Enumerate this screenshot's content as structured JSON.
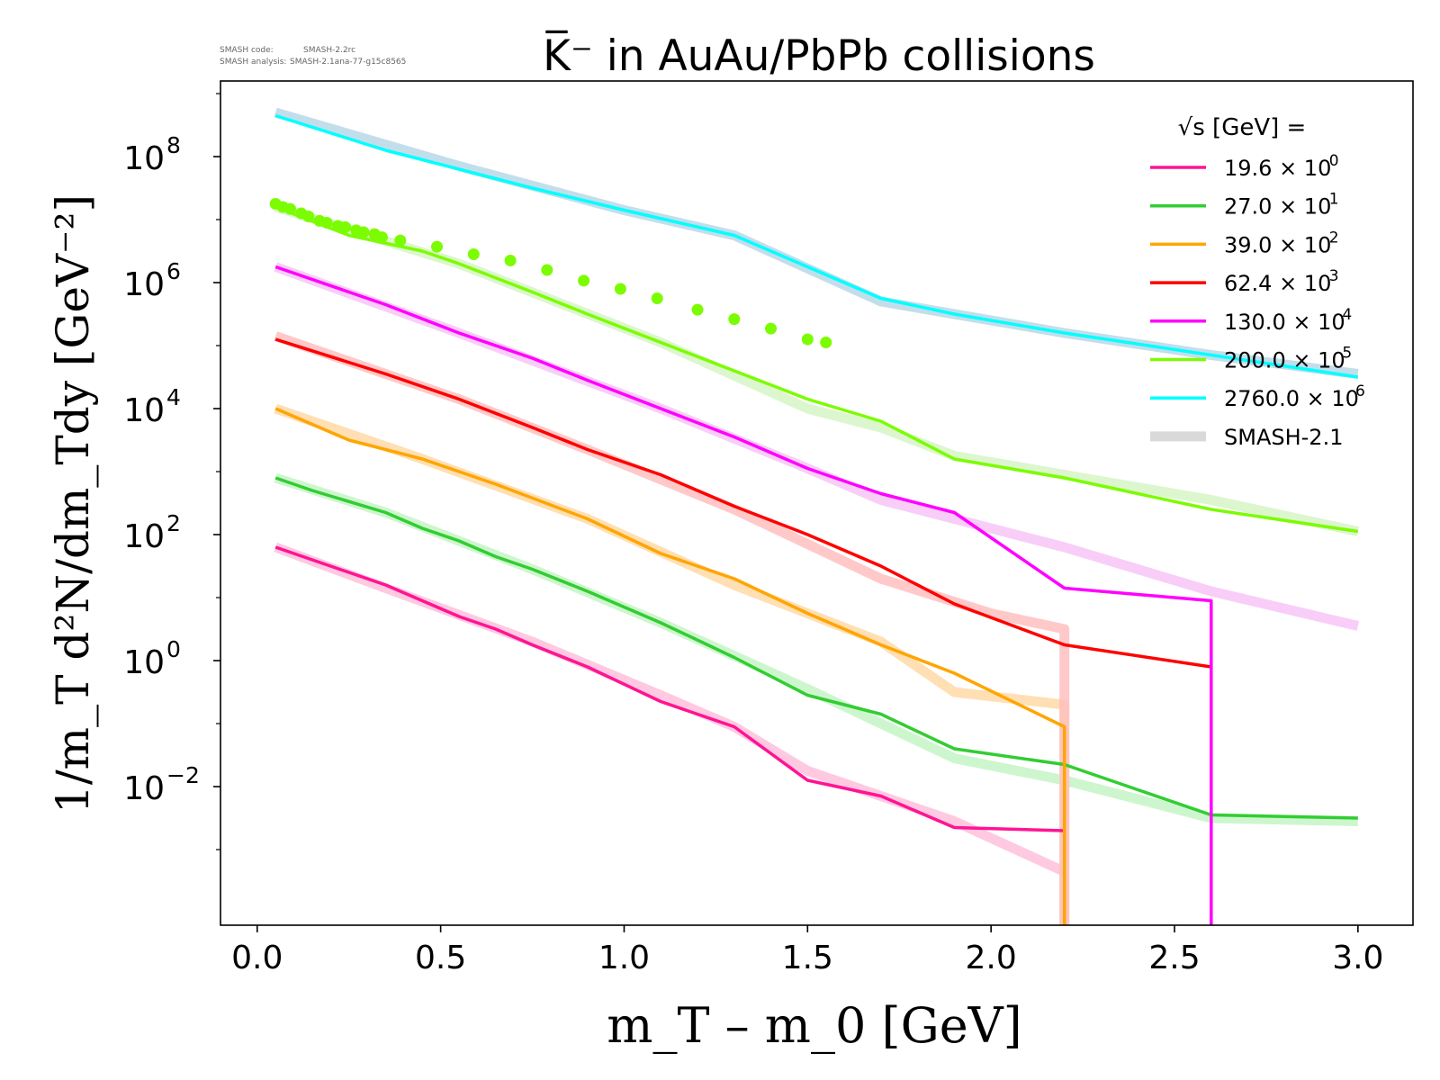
{
  "meta": {
    "code_label": "SMASH code:",
    "code_value": "SMASH-2.2rc",
    "analysis_label": "SMASH analysis:",
    "analysis_value": "SMASH-2.1ana-77-g15c8565"
  },
  "chart_data": {
    "type": "line",
    "title": "K̅⁻ in AuAu/PbPb collisions",
    "xlabel": "m_T – m_0 [GeV]",
    "ylabel": "1/m_T d²N/dm_Tdy [GeV⁻²]",
    "yscale": "log",
    "xlim": [
      -0.1,
      3.15
    ],
    "ylim_exp": [
      -4.2,
      9.2
    ],
    "x_ticks": [
      "0.0",
      "0.5",
      "1.0",
      "1.5",
      "2.0",
      "2.5",
      "3.0"
    ],
    "y_ticks": [
      {
        "base": "10",
        "exp": "8",
        "value": 8
      },
      {
        "base": "10",
        "exp": "6",
        "value": 6
      },
      {
        "base": "10",
        "exp": "4",
        "value": 4
      },
      {
        "base": "10",
        "exp": "2",
        "value": 2
      },
      {
        "base": "10",
        "exp": "0",
        "value": 0
      },
      {
        "base": "10",
        "exp": "−2",
        "value": -2
      }
    ],
    "legend": {
      "title": "√s  [GeV] =",
      "position": "top-right",
      "entries": [
        {
          "value": "19.6",
          "mult": "10",
          "exp": "0",
          "color": "#ff1493"
        },
        {
          "value": "27.0",
          "mult": "10",
          "exp": "1",
          "color": "#32cd32"
        },
        {
          "value": "39.0",
          "mult": "10",
          "exp": "2",
          "color": "#ffa500"
        },
        {
          "value": "62.4",
          "mult": "10",
          "exp": "3",
          "color": "#ff0000"
        },
        {
          "value": "130.0",
          "mult": "10",
          "exp": "4",
          "color": "#ff00ff"
        },
        {
          "value": "200.0",
          "mult": "10",
          "exp": "5",
          "color": "#7cfc00"
        },
        {
          "value": "2760.0",
          "mult": "10",
          "exp": "6",
          "color": "#00ffff"
        }
      ],
      "band_label": "SMASH-2.1",
      "band_color": "#d9d9d9"
    },
    "series": [
      {
        "name": "19.6",
        "color": "#ff1493",
        "x": [
          0.05,
          0.15,
          0.35,
          0.55,
          0.65,
          0.75,
          0.9,
          1.1,
          1.3,
          1.5,
          1.7,
          1.9,
          2.2
        ],
        "y_log10": [
          1.8,
          1.6,
          1.2,
          0.7,
          0.5,
          0.25,
          -0.1,
          -0.65,
          -1.05,
          -1.9,
          -2.15,
          -2.65,
          -2.7
        ]
      },
      {
        "name": "27.0",
        "color": "#32cd32",
        "x": [
          0.05,
          0.15,
          0.35,
          0.45,
          0.55,
          0.65,
          0.75,
          0.9,
          1.1,
          1.3,
          1.5,
          1.7,
          1.9,
          2.2,
          2.4,
          2.6,
          3.0
        ],
        "y_log10": [
          2.9,
          2.7,
          2.35,
          2.1,
          1.9,
          1.65,
          1.45,
          1.1,
          0.6,
          0.05,
          -0.55,
          -0.85,
          -1.4,
          -1.65,
          -2.05,
          -2.45,
          -2.5
        ]
      },
      {
        "name": "39.0",
        "color": "#ffa500",
        "x": [
          0.05,
          0.25,
          0.45,
          0.65,
          0.9,
          1.1,
          1.3,
          1.5,
          1.7,
          1.9,
          2.2,
          2.2
        ],
        "y_log10": [
          4.0,
          3.5,
          3.2,
          2.8,
          2.25,
          1.7,
          1.3,
          0.75,
          0.25,
          -0.2,
          -1.05,
          -4.2
        ]
      },
      {
        "name": "62.4",
        "color": "#ff0000",
        "x": [
          0.05,
          0.35,
          0.55,
          0.75,
          0.9,
          1.1,
          1.3,
          1.5,
          1.7,
          1.9,
          2.2,
          2.6
        ],
        "y_log10": [
          5.1,
          4.55,
          4.15,
          3.7,
          3.35,
          2.95,
          2.45,
          2.0,
          1.5,
          0.9,
          0.25,
          -0.1
        ]
      },
      {
        "name": "130.0",
        "color": "#ff00ff",
        "x": [
          0.05,
          0.35,
          0.55,
          0.75,
          0.9,
          1.1,
          1.3,
          1.5,
          1.7,
          1.9,
          2.2,
          2.6,
          2.6
        ],
        "y_log10": [
          6.25,
          5.65,
          5.2,
          4.8,
          4.45,
          4.0,
          3.55,
          3.05,
          2.65,
          2.35,
          1.15,
          0.95,
          -4.2
        ]
      },
      {
        "name": "200.0",
        "color": "#7cfc00",
        "x": [
          0.05,
          0.25,
          0.45,
          0.55,
          0.75,
          0.9,
          1.1,
          1.3,
          1.5,
          1.7,
          1.9,
          2.2,
          2.6,
          3.0
        ],
        "y_log10": [
          7.2,
          6.75,
          6.5,
          6.3,
          5.85,
          5.5,
          5.05,
          4.6,
          4.15,
          3.8,
          3.2,
          2.9,
          2.4,
          2.05
        ]
      },
      {
        "name": "2760.0",
        "color": "#00ffff",
        "x": [
          0.05,
          0.35,
          0.55,
          0.75,
          1.0,
          1.3,
          1.7,
          1.9,
          2.2,
          2.6,
          3.0
        ],
        "y_log10": [
          8.65,
          8.1,
          7.8,
          7.5,
          7.15,
          6.75,
          5.75,
          5.5,
          5.2,
          4.85,
          4.5
        ]
      }
    ],
    "bands": [
      {
        "color": "#ffc0dc",
        "x": [
          0.05,
          0.35,
          0.75,
          1.1,
          1.3,
          1.5,
          1.7,
          1.9,
          2.2
        ],
        "y_log10": [
          1.8,
          1.15,
          0.3,
          -0.55,
          -1.05,
          -1.75,
          -2.15,
          -2.55,
          -3.35
        ]
      },
      {
        "color": "#c6f5c6",
        "x": [
          0.05,
          0.35,
          0.75,
          1.1,
          1.5,
          1.9,
          2.2,
          2.6,
          3.0
        ],
        "y_log10": [
          2.9,
          2.35,
          1.45,
          0.6,
          -0.45,
          -1.55,
          -1.9,
          -2.5,
          -2.55
        ]
      },
      {
        "color": "#ffd9a6",
        "x": [
          0.05,
          0.45,
          0.9,
          1.3,
          1.7,
          1.9,
          2.2,
          2.2
        ],
        "y_log10": [
          4.0,
          3.2,
          2.25,
          1.2,
          0.3,
          -0.5,
          -0.7,
          -4.2
        ]
      },
      {
        "color": "#ffc0c0",
        "x": [
          0.05,
          0.55,
          0.9,
          1.3,
          1.7,
          2.0,
          2.2,
          2.2
        ],
        "y_log10": [
          5.15,
          4.15,
          3.35,
          2.4,
          1.3,
          0.75,
          0.5,
          -4.2
        ]
      },
      {
        "color": "#f7c6f7",
        "x": [
          0.05,
          0.55,
          1.1,
          1.5,
          1.7,
          2.2,
          2.6,
          3.0
        ],
        "y_log10": [
          6.25,
          5.2,
          4.0,
          3.05,
          2.55,
          1.8,
          1.1,
          0.55
        ]
      },
      {
        "color": "#d6f5c6",
        "x": [
          0.05,
          0.55,
          1.1,
          1.5,
          1.7,
          1.9,
          2.2,
          2.6,
          3.0
        ],
        "y_log10": [
          7.2,
          6.3,
          5.05,
          4.0,
          3.7,
          3.25,
          2.95,
          2.55,
          2.05
        ]
      },
      {
        "color": "#b8d8e8",
        "x": [
          0.05,
          0.55,
          1.0,
          1.3,
          1.7,
          2.2,
          2.6,
          3.0
        ],
        "y_log10": [
          8.7,
          7.85,
          7.15,
          6.75,
          5.7,
          5.2,
          4.85,
          4.55
        ]
      }
    ],
    "data_points": {
      "color": "#7cfc00",
      "x": [
        0.05,
        0.07,
        0.09,
        0.12,
        0.14,
        0.17,
        0.19,
        0.22,
        0.24,
        0.27,
        0.29,
        0.32,
        0.34,
        0.39,
        0.49,
        0.59,
        0.69,
        0.79,
        0.89,
        0.99,
        1.09,
        1.2,
        1.3,
        1.4,
        1.5,
        1.55
      ],
      "y_log10": [
        7.25,
        7.2,
        7.17,
        7.1,
        7.05,
        6.98,
        6.95,
        6.9,
        6.88,
        6.83,
        6.8,
        6.77,
        6.72,
        6.67,
        6.57,
        6.45,
        6.35,
        6.2,
        6.03,
        5.9,
        5.75,
        5.57,
        5.42,
        5.27,
        5.1,
        5.05
      ]
    }
  }
}
